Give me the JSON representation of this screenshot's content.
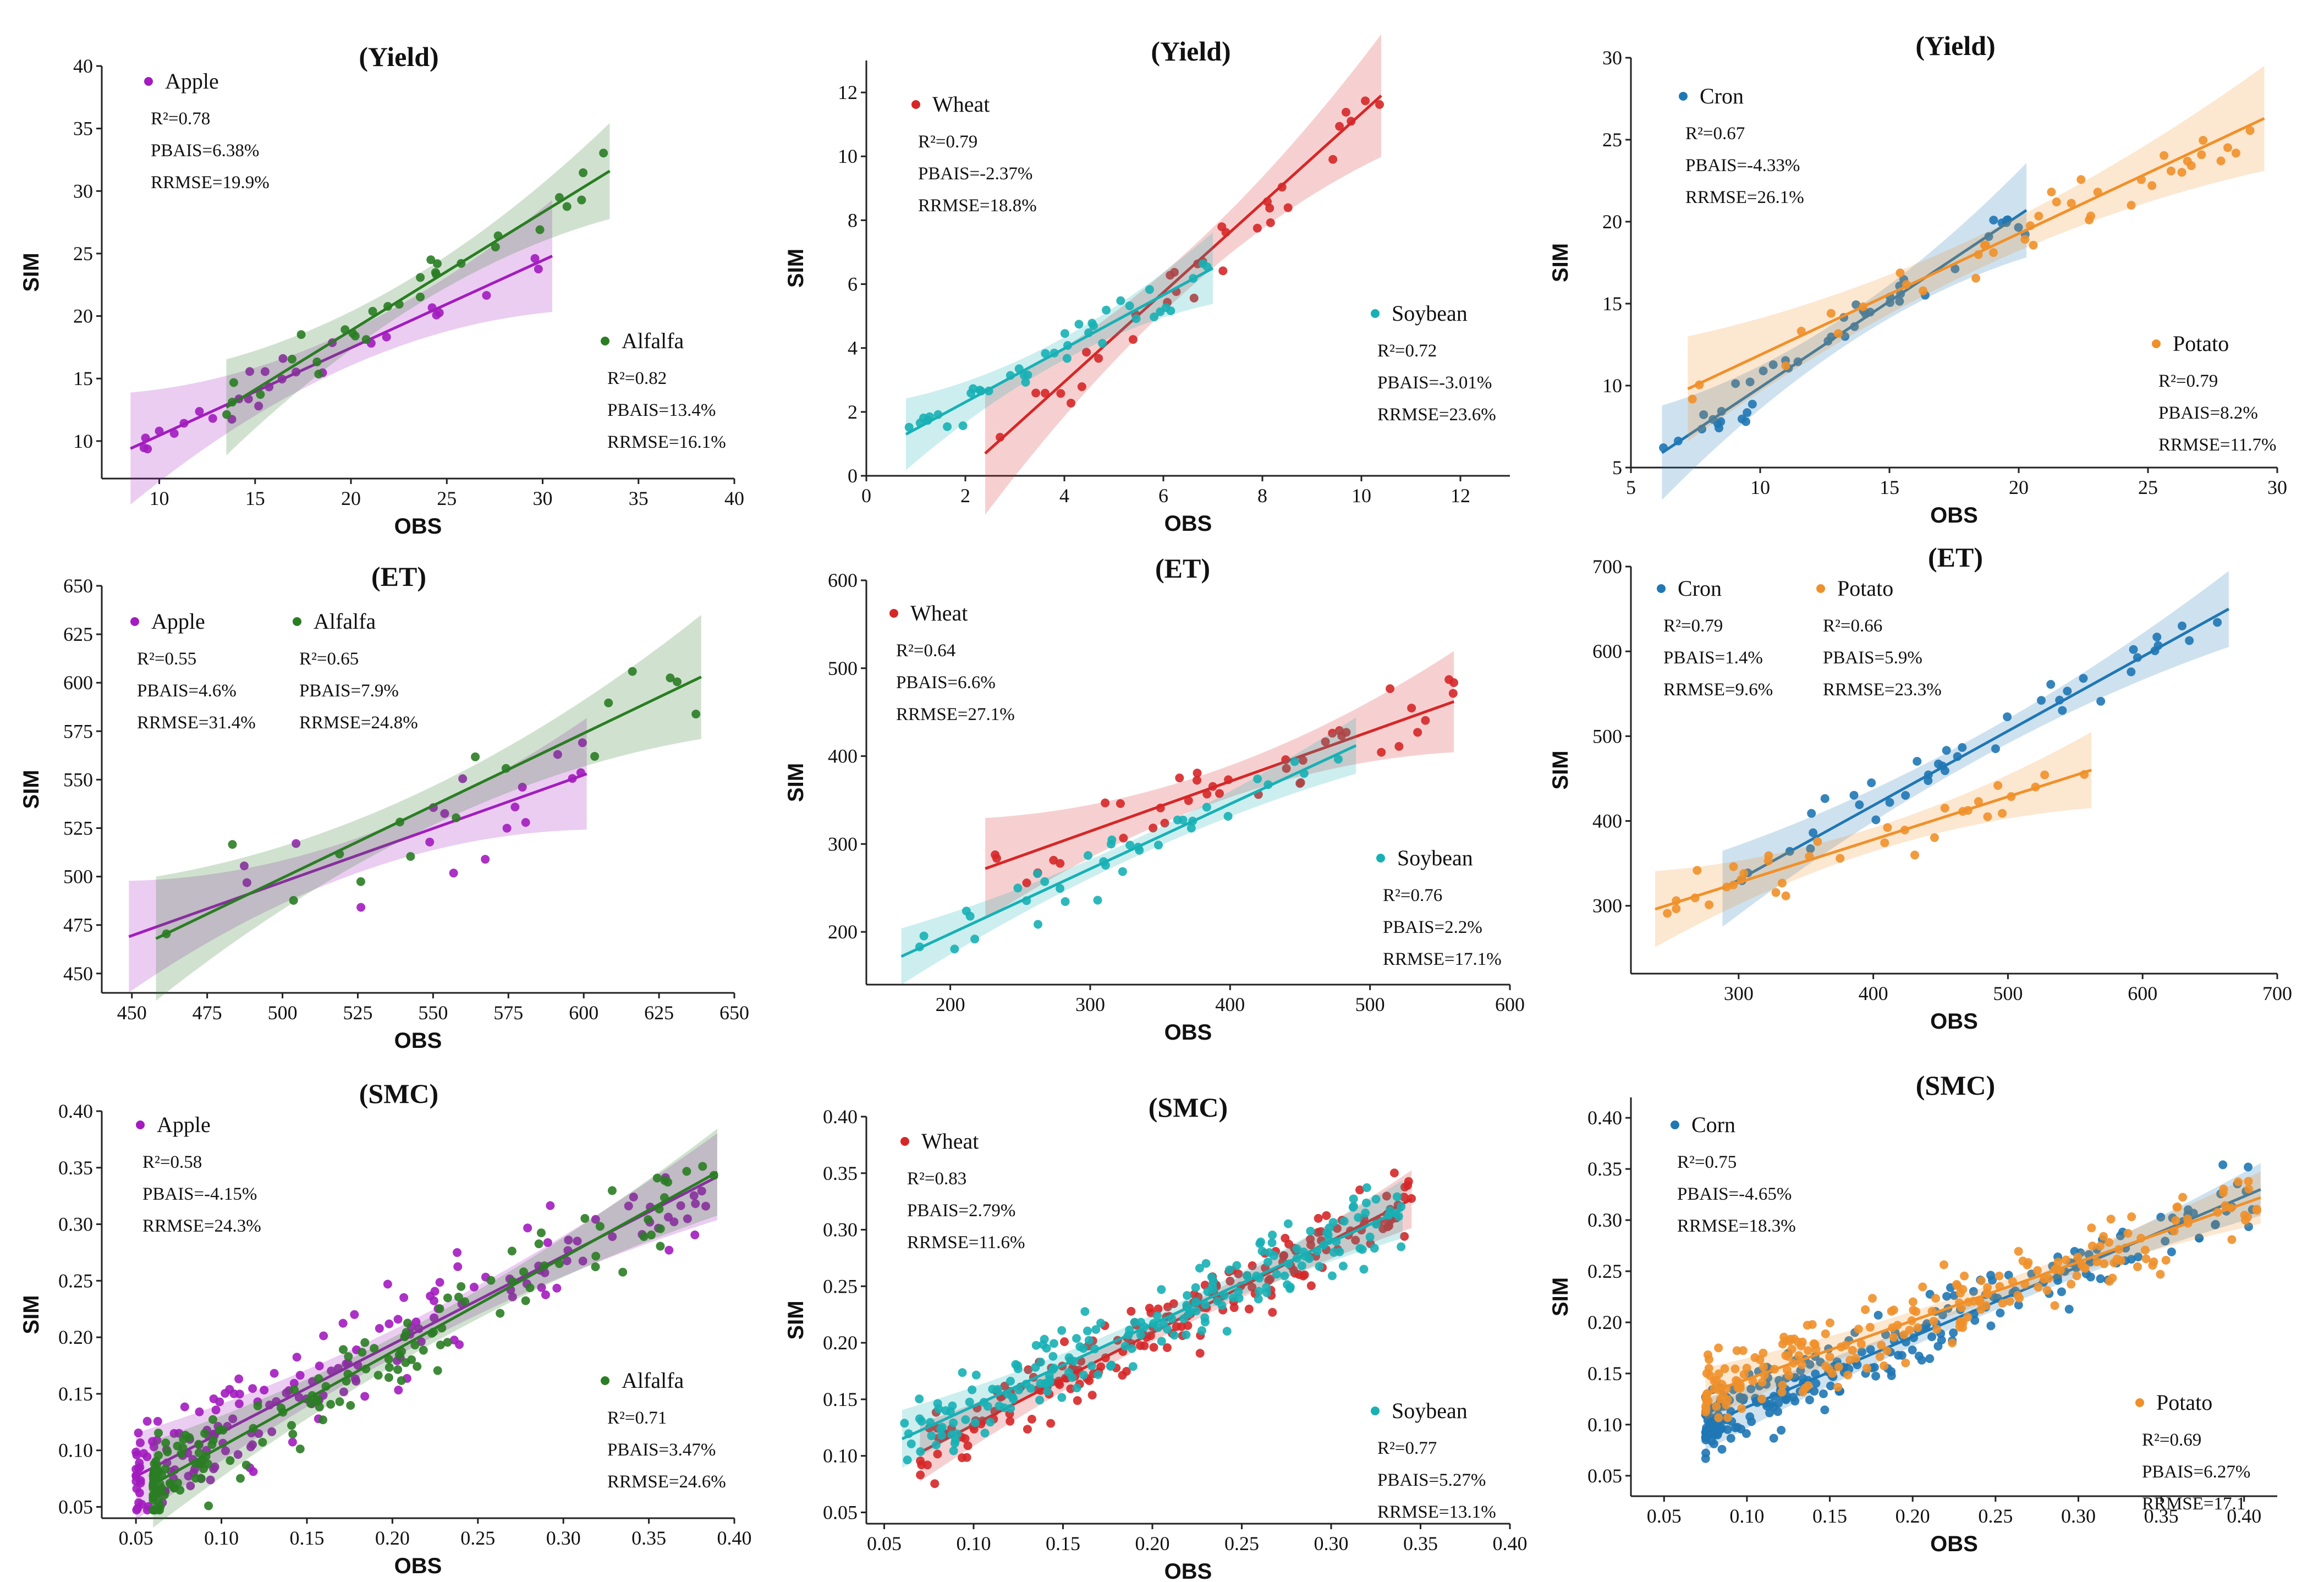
{
  "colors": {
    "apple": "#a21cbf",
    "alfalfa": "#2a7d23",
    "wheat": "#d62728",
    "soybean": "#17b0b5",
    "corn": "#1f77b4",
    "potato": "#f0902a"
  },
  "chart_data": [
    {
      "type": "scatter",
      "title": "(Yield)",
      "xlabel": "OBS",
      "ylabel": "SIM",
      "xlim": [
        7,
        40
      ],
      "ylim": [
        7,
        40
      ],
      "xticks": [
        "10",
        "15",
        "20",
        "25",
        "30",
        "35",
        "40"
      ],
      "yticks": [
        "10",
        "15",
        "20",
        "25",
        "30",
        "35",
        "40"
      ],
      "series": [
        {
          "name": "Apple",
          "color": "apple",
          "stats": [
            "R²=0.78",
            "PBAIS=6.38%",
            "RRMSE=19.9%"
          ],
          "fit": [
            [
              8.5,
              9.4
            ],
            [
              30.5,
              24.8
            ]
          ],
          "band": 1.4,
          "seed": 11,
          "n": 28,
          "xr": [
            8.5,
            30.5
          ],
          "noise": 1.6
        },
        {
          "name": "Alfalfa",
          "color": "alfalfa",
          "stats": [
            "R²=0.82",
            "PBAIS=13.4%",
            "RRMSE=16.1%"
          ],
          "fit": [
            [
              13.5,
              12.7
            ],
            [
              33.5,
              31.6
            ]
          ],
          "band": 1.2,
          "seed": 12,
          "n": 30,
          "xr": [
            13.5,
            33.5
          ],
          "noise": 1.8
        }
      ]
    },
    {
      "type": "scatter",
      "title": "(Yield)",
      "xlabel": "OBS",
      "ylabel": "SIM",
      "xlim": [
        0,
        13
      ],
      "ylim": [
        0,
        13
      ],
      "xticks": [
        "0",
        "2",
        "4",
        "6",
        "8",
        "10",
        "12"
      ],
      "yticks": [
        "0",
        "2",
        "4",
        "6",
        "8",
        "10",
        "12"
      ],
      "series": [
        {
          "name": "Wheat",
          "color": "wheat",
          "stats": [
            "R²=0.79",
            "PBAIS=-2.37%",
            "RRMSE=18.8%"
          ],
          "fit": [
            [
              2.4,
              0.7
            ],
            [
              10.4,
              11.9
            ]
          ],
          "band": 0.6,
          "seed": 21,
          "n": 32,
          "xr": [
            2.4,
            10.4
          ],
          "noise": 0.9
        },
        {
          "name": "Soybean",
          "color": "soybean",
          "stats": [
            "R²=0.72",
            "PBAIS=-3.01%",
            "RRMSE=23.6%"
          ],
          "fit": [
            [
              0.8,
              1.3
            ],
            [
              7.0,
              6.5
            ]
          ],
          "band": 0.35,
          "seed": 22,
          "n": 40,
          "xr": [
            0.8,
            7.0
          ],
          "noise": 0.55
        }
      ]
    },
    {
      "type": "scatter",
      "title": "(Yield)",
      "xlabel": "OBS",
      "ylabel": "SIM",
      "xlim": [
        5,
        30
      ],
      "ylim": [
        5,
        30
      ],
      "xticks": [
        "5",
        "10",
        "15",
        "20",
        "25",
        "30"
      ],
      "yticks": [
        "5",
        "10",
        "15",
        "20",
        "25",
        "30"
      ],
      "series": [
        {
          "name": "Cron",
          "color": "corn",
          "stats": [
            "R²=0.67",
            "PBAIS=-4.33%",
            "RRMSE=26.1%"
          ],
          "fit": [
            [
              6.2,
              5.9
            ],
            [
              20.3,
              20.7
            ]
          ],
          "band": 0.9,
          "seed": 31,
          "n": 45,
          "xr": [
            6.2,
            20.3
          ],
          "noise": 1.2
        },
        {
          "name": "Potato",
          "color": "potato",
          "stats": [
            "R²=0.79",
            "PBAIS=8.2%",
            "RRMSE=11.7%"
          ],
          "fit": [
            [
              7.2,
              9.8
            ],
            [
              29.5,
              26.3
            ]
          ],
          "band": 1.0,
          "seed": 32,
          "n": 40,
          "xr": [
            7.2,
            29.5
          ],
          "noise": 1.8
        }
      ]
    },
    {
      "type": "scatter",
      "title": "(ET)",
      "xlabel": "OBS",
      "ylabel": "SIM",
      "xlim": [
        440,
        650
      ],
      "ylim": [
        440,
        650
      ],
      "xticks": [
        "450",
        "475",
        "500",
        "525",
        "550",
        "575",
        "600",
        "625",
        "650"
      ],
      "yticks": [
        "450",
        "475",
        "500",
        "525",
        "550",
        "575",
        "600",
        "625",
        "650"
      ],
      "series": [
        {
          "name": "Apple",
          "color": "apple",
          "stats": [
            "R²=0.55",
            "PBAIS=4.6%",
            "RRMSE=31.4%"
          ],
          "fit": [
            [
              449,
              469
            ],
            [
              601,
              553
            ]
          ],
          "band": 9,
          "seed": 41,
          "n": 18,
          "xr": [
            449,
            601
          ],
          "noise": 25
        },
        {
          "name": "Alfalfa",
          "color": "alfalfa",
          "stats": [
            "R²=0.65",
            "PBAIS=7.9%",
            "RRMSE=24.8%"
          ],
          "fit": [
            [
              458,
              468
            ],
            [
              639,
              603
            ]
          ],
          "band": 10,
          "seed": 42,
          "n": 16,
          "xr": [
            458,
            639
          ],
          "noise": 22
        }
      ]
    },
    {
      "type": "scatter",
      "title": "(ET)",
      "xlabel": "OBS",
      "ylabel": "SIM",
      "xlim": [
        140,
        600
      ],
      "ylim": [
        140,
        600
      ],
      "xticks": [
        "200",
        "300",
        "400",
        "500",
        "600"
      ],
      "yticks": [
        "200",
        "300",
        "400",
        "500",
        "600"
      ],
      "series": [
        {
          "name": "Wheat",
          "color": "wheat",
          "stats": [
            "R²=0.64",
            "PBAIS=6.6%",
            "RRMSE=27.1%"
          ],
          "fit": [
            [
              225,
              272
            ],
            [
              560,
              462
            ]
          ],
          "band": 18,
          "seed": 51,
          "n": 40,
          "xr": [
            225,
            560
          ],
          "noise": 35
        },
        {
          "name": "Soybean",
          "color": "soybean",
          "stats": [
            "R²=0.76",
            "PBAIS=2.2%",
            "RRMSE=17.1%"
          ],
          "fit": [
            [
              165,
              172
            ],
            [
              490,
              412
            ]
          ],
          "band": 10,
          "seed": 52,
          "n": 35,
          "xr": [
            165,
            490
          ],
          "noise": 30
        }
      ]
    },
    {
      "type": "scatter",
      "title": "(ET)",
      "xlabel": "OBS",
      "ylabel": "SIM",
      "xlim": [
        220,
        700
      ],
      "ylim": [
        220,
        700
      ],
      "xticks": [
        "300",
        "400",
        "500",
        "600",
        "700"
      ],
      "yticks": [
        "300",
        "400",
        "500",
        "600",
        "700"
      ],
      "series": [
        {
          "name": "Cron",
          "color": "corn",
          "stats": [
            "R²=0.79",
            "PBAIS=1.4%",
            "RRMSE=9.6%"
          ],
          "fit": [
            [
              288,
              320
            ],
            [
              664,
              650
            ]
          ],
          "band": 14,
          "seed": 61,
          "n": 40,
          "xr": [
            288,
            664
          ],
          "noise": 28
        },
        {
          "name": "Potato",
          "color": "potato",
          "stats": [
            "R²=0.66",
            "PBAIS=5.9%",
            "RRMSE=23.3%"
          ],
          "fit": [
            [
              238,
              296
            ],
            [
              562,
              460
            ]
          ],
          "band": 14,
          "seed": 62,
          "n": 35,
          "xr": [
            238,
            562
          ],
          "noise": 30
        }
      ]
    },
    {
      "type": "scatter",
      "title": "(SMC)",
      "xlabel": "OBS",
      "ylabel": "SIM",
      "xlim": [
        0.03,
        0.4
      ],
      "ylim": [
        0.04,
        0.4
      ],
      "xticks": [
        "0.05",
        "0.10",
        "0.15",
        "0.20",
        "0.25",
        "0.30",
        "0.35",
        "0.40"
      ],
      "yticks": [
        "0.05",
        "0.10",
        "0.15",
        "0.20",
        "0.25",
        "0.30",
        "0.35",
        "0.40"
      ],
      "series": [
        {
          "name": "Apple",
          "color": "apple",
          "stats": [
            "R²=0.58",
            "PBAIS=-4.15%",
            "RRMSE=24.3%"
          ],
          "fit": [
            [
              0.05,
              0.077
            ],
            [
              0.39,
              0.342
            ]
          ],
          "band": 0.012,
          "seed": 71,
          "n": 180,
          "xr": [
            0.05,
            0.39
          ],
          "noise": 0.04,
          "skew": 2.2
        },
        {
          "name": "Alfalfa",
          "color": "alfalfa",
          "stats": [
            "R²=0.71",
            "PBAIS=3.47%",
            "RRMSE=24.6%"
          ],
          "fit": [
            [
              0.06,
              0.07
            ],
            [
              0.39,
              0.346
            ]
          ],
          "band": 0.012,
          "seed": 72,
          "n": 160,
          "xr": [
            0.06,
            0.39
          ],
          "noise": 0.035,
          "skew": 2.6
        }
      ]
    },
    {
      "type": "scatter",
      "title": "(SMC)",
      "xlabel": "OBS",
      "ylabel": "SIM",
      "xlim": [
        0.04,
        0.4
      ],
      "ylim": [
        0.04,
        0.4
      ],
      "xticks": [
        "0.05",
        "0.10",
        "0.15",
        "0.20",
        "0.25",
        "0.30",
        "0.35",
        "0.40"
      ],
      "yticks": [
        "0.05",
        "0.10",
        "0.15",
        "0.20",
        "0.25",
        "0.30",
        "0.35",
        "0.40"
      ],
      "series": [
        {
          "name": "Wheat",
          "color": "wheat",
          "stats": [
            "R²=0.83",
            "PBAIS=2.79%",
            "RRMSE=11.6%"
          ],
          "fit": [
            [
              0.07,
              0.103
            ],
            [
              0.345,
              0.327
            ]
          ],
          "band": 0.008,
          "seed": 81,
          "n": 200,
          "xr": [
            0.07,
            0.345
          ],
          "noise": 0.03,
          "skew": 1.0
        },
        {
          "name": "Soybean",
          "color": "soybean",
          "stats": [
            "R²=0.77",
            "PBAIS=5.27%",
            "RRMSE=13.1%"
          ],
          "fit": [
            [
              0.06,
              0.115
            ],
            [
              0.34,
              0.318
            ]
          ],
          "band": 0.008,
          "seed": 82,
          "n": 200,
          "xr": [
            0.06,
            0.34
          ],
          "noise": 0.03,
          "skew": 1.0
        }
      ]
    },
    {
      "type": "scatter",
      "title": "(SMC)",
      "xlabel": "OBS",
      "ylabel": "SIM",
      "xlim": [
        0.03,
        0.42
      ],
      "ylim": [
        0.03,
        0.42
      ],
      "xticks": [
        "0.05",
        "0.10",
        "0.15",
        "0.20",
        "0.25",
        "0.30",
        "0.35",
        "0.40"
      ],
      "yticks": [
        "0.05",
        "0.10",
        "0.15",
        "0.20",
        "0.25",
        "0.30",
        "0.35",
        "0.40"
      ],
      "series": [
        {
          "name": "Corn",
          "color": "corn",
          "stats": [
            "R²=0.75",
            "PBAIS=-4.65%",
            "RRMSE=18.3%"
          ],
          "fit": [
            [
              0.075,
              0.1
            ],
            [
              0.41,
              0.33
            ]
          ],
          "band": 0.008,
          "seed": 91,
          "n": 260,
          "xr": [
            0.075,
            0.41
          ],
          "noise": 0.03,
          "skew": 2.0
        },
        {
          "name": "Potato",
          "color": "potato",
          "stats": [
            "R²=0.69",
            "PBAIS=6.27%",
            "RRMSE=17.1"
          ],
          "fit": [
            [
              0.075,
              0.13
            ],
            [
              0.41,
              0.322
            ]
          ],
          "band": 0.008,
          "seed": 92,
          "n": 220,
          "xr": [
            0.075,
            0.41
          ],
          "noise": 0.035,
          "skew": 1.6
        }
      ]
    }
  ]
}
